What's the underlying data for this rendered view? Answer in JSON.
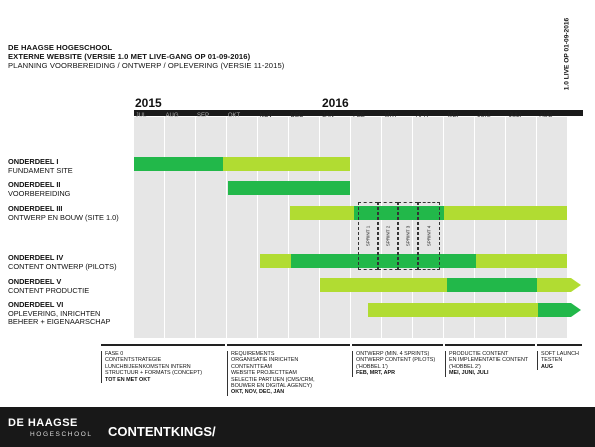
{
  "header": {
    "org": "DE HAAGSE HOGESCHOOL",
    "title": "EXTERNE WEBSITE (VERSIE 1.0 MET LIVE-GANG OP 01-09-2016)",
    "subtitle": "PLANNING VOORBEREIDING / ONTWERP / OPLEVERING (VERSIE 11-2015)"
  },
  "live_label": "1.0 LIVE OP 01-09-2016",
  "years": [
    "2015",
    "2016"
  ],
  "months": [
    "JUL",
    "AUG",
    "SEP",
    "OKT",
    "NOV",
    "DEC",
    "JAN",
    "FEB",
    "MRT",
    "APR",
    "MEI",
    "JUNI",
    "JULI",
    "AUG"
  ],
  "rows": [
    {
      "name": "ONDERDEEL I",
      "desc": "FUNDAMENT SITE"
    },
    {
      "name": "ONDERDEEL II",
      "desc": "VOORBEREIDING"
    },
    {
      "name": "ONDERDEEL III",
      "desc": "ONTWERP EN BOUW (SITE 1.0)"
    },
    {
      "name": "ONDERDEEL IV",
      "desc": "CONTENT ONTWERP (PILOTS)"
    },
    {
      "name": "ONDERDEEL V",
      "desc": "CONTENT PRODUCTIE"
    },
    {
      "name": "ONDERDEEL VI",
      "desc": "OPLEVERING, INRICHTEN",
      "desc2": "BEHEER + EIGENAARSCHAP"
    }
  ],
  "sprints": [
    "SPRINT 1",
    "SPRINT 2",
    "SPRINT 3",
    "SPRINT 4"
  ],
  "phases": [
    {
      "lines": [
        "FASE 0",
        "CONTENTSTRATEGIE",
        "LUNCHBIJEENKOMSTEN INTERN",
        "STRUCTUUR + FORMATS (CONCEPT)"
      ],
      "bold": "TOT EN MET OKT"
    },
    {
      "lines": [
        "REQUIREMENTS",
        "ORGANISATIE INRICHTEN",
        "CONTENTTEAM",
        "WEBSITE PROJECTTEAM",
        "SELECTIE PARTIJEN (CMS/CRM,",
        "BOUWER EN DIGITAL AGENCY)"
      ],
      "bold": "OKT, NOV, DEC, JAN"
    },
    {
      "lines": [
        "ONTWERP (MIN. 4 SPRINTS)",
        "ONTWERP CONTENT (PILOTS)",
        "('HOBBEL 1')"
      ],
      "bold": "FEB, MRT, APR"
    },
    {
      "lines": [
        "PRODUCTIE CONTENT",
        "EN IMPLEMENTATIE CONTENT",
        "('HOBBEL 2')"
      ],
      "bold": "MEI, JUNI, JULI"
    },
    {
      "lines": [
        "SOFT LAUNCH",
        "TESTEN"
      ],
      "bold": "AUG"
    }
  ],
  "footer": {
    "logo_main": "DE HAAGSE",
    "logo_sub": "HOGESCHOOL",
    "brand": "CONTENTKINGS/"
  },
  "colors": {
    "lime": "#b1dc32",
    "green": "#22b84a",
    "grid": "#e6e6e6",
    "footer": "#181818"
  }
}
